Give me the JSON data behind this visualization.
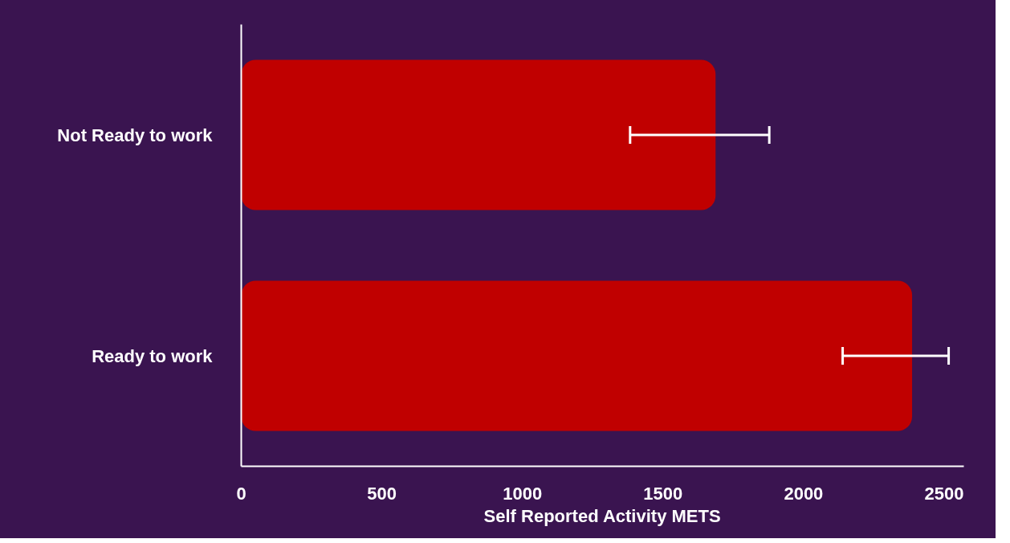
{
  "chart_data": {
    "type": "bar",
    "orientation": "horizontal",
    "xlabel": "Self Reported Activity METS",
    "categories": [
      "Not Ready to work",
      "Ready to work"
    ],
    "values": [
      1687,
      2386
    ],
    "errors": [
      [
        1383,
        1878
      ],
      [
        2139,
        2516
      ]
    ],
    "color": "#c00000",
    "xlim": [
      0,
      2570
    ],
    "xticks": [
      0,
      500,
      1000,
      1500,
      2000,
      2500
    ],
    "grid": false
  }
}
